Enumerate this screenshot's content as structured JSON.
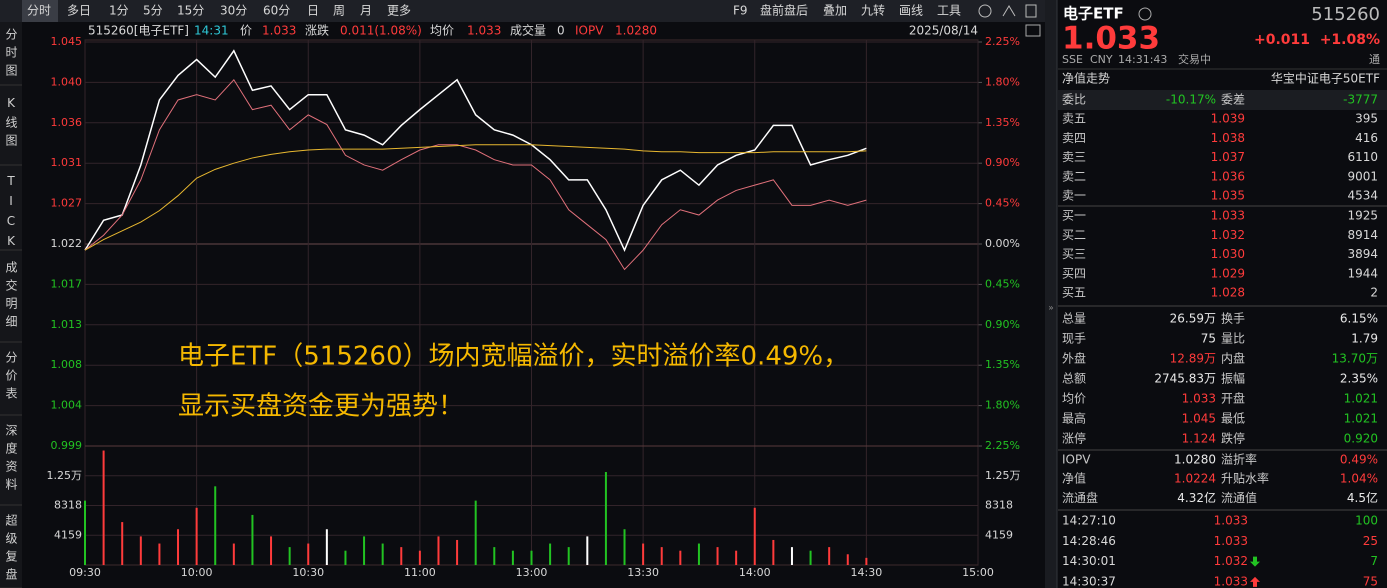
{
  "toolbar": {
    "tabs": [
      "分时",
      "多日",
      "1分",
      "5分",
      "15分",
      "30分",
      "60分",
      "日",
      "周",
      "月",
      "更多"
    ],
    "tools": [
      "F9",
      "盘前盘后",
      "叠加",
      "九转",
      "画线",
      "工具"
    ]
  },
  "sidebar": [
    "分时图",
    "K线图",
    "TICK",
    "成交明细",
    "分价表",
    "深度资料",
    "超级复盘"
  ],
  "info": [
    {
      "text": "515260[电子ETF]",
      "color": "#d8d8d8"
    },
    {
      "text": "14:31",
      "color": "#2ec7d6"
    },
    {
      "text": "价",
      "color": "#d8d8d8"
    },
    {
      "text": "1.033",
      "color": "#ff3b3b"
    },
    {
      "text": "涨跌",
      "color": "#d8d8d8"
    },
    {
      "text": "0.011(1.08%)",
      "color": "#ff3b3b"
    },
    {
      "text": "均价",
      "color": "#d8d8d8"
    },
    {
      "text": "1.033",
      "color": "#ff3b3b"
    },
    {
      "text": "成交量",
      "color": "#d8d8d8"
    },
    {
      "text": "0",
      "color": "#d8d8d8"
    },
    {
      "text": "IOPV",
      "color": "#ff3b3b"
    },
    {
      "text": "1.0280",
      "color": "#ff3b3b"
    }
  ],
  "date": "2025/08/14",
  "chart_data": {
    "type": "line",
    "base": 1.022,
    "up_color": "#ff3b3b",
    "down_color": "#22c322",
    "flat_color": "#d8d8d8",
    "xlim": [
      0,
      240
    ],
    "xticks": [
      {
        "value": 0,
        "label": "09:30"
      },
      {
        "value": 30,
        "label": "10:00"
      },
      {
        "value": 60,
        "label": "10:30"
      },
      {
        "value": 90,
        "label": "11:00"
      },
      {
        "value": 120,
        "label": "13:00"
      },
      {
        "value": 150,
        "label": "13:30"
      },
      {
        "value": 180,
        "label": "14:00"
      },
      {
        "value": 210,
        "label": "14:30"
      },
      {
        "value": 240,
        "label": "15:00"
      }
    ],
    "ylim": [
      0.999,
      1.045
    ],
    "yticks": [
      1.045,
      {
        "value": 1.0404,
        "label": "1.040"
      },
      {
        "value": 1.0358,
        "label": "1.036"
      },
      {
        "value": 1.0312,
        "label": "1.031"
      },
      {
        "value": 1.0266,
        "label": "1.027"
      },
      1.022,
      {
        "value": 1.0174,
        "label": "1.017"
      },
      {
        "value": 1.0128,
        "label": "1.013"
      },
      {
        "value": 1.0082,
        "label": "1.008"
      },
      {
        "value": 1.0036,
        "label": "1.004"
      },
      0.999
    ],
    "y2lim": [
      -2.25,
      2.25
    ],
    "y2ticks": [
      {
        "value": 2.25,
        "label": "2.25%"
      },
      {
        "value": 1.8,
        "label": "1.80%"
      },
      {
        "value": 1.35,
        "label": "1.35%"
      },
      {
        "value": 0.9,
        "label": "0.90%"
      },
      {
        "value": 0.45,
        "label": "0.45%"
      },
      {
        "value": 0,
        "label": "0.00%"
      },
      {
        "value": -0.45,
        "label": "0.45%"
      },
      {
        "value": -0.9,
        "label": "0.90%"
      },
      {
        "value": -1.35,
        "label": "1.35%"
      },
      {
        "value": -1.8,
        "label": "1.80%"
      },
      {
        "value": -2.25,
        "label": "2.25%"
      }
    ],
    "x": [
      0,
      5,
      10,
      15,
      20,
      25,
      30,
      35,
      40,
      45,
      50,
      55,
      60,
      65,
      70,
      75,
      80,
      85,
      90,
      95,
      100,
      105,
      110,
      115,
      120,
      125,
      130,
      135,
      140,
      145,
      150,
      155,
      160,
      165,
      170,
      175,
      180,
      185,
      190,
      195,
      200,
      205,
      210
    ],
    "series": [
      {
        "color": "#ffffff",
        "values": [
          1.0213,
          1.0247,
          1.0253,
          1.031,
          1.0384,
          1.0412,
          1.043,
          1.041,
          1.044,
          1.0395,
          1.04,
          1.0373,
          1.039,
          1.039,
          1.035,
          1.0344,
          1.0333,
          1.0355,
          1.0373,
          1.039,
          1.0407,
          1.0367,
          1.035,
          1.0344,
          1.0333,
          1.0316,
          1.0293,
          1.0293,
          1.0259,
          1.0213,
          1.0264,
          1.0293,
          1.0304,
          1.0287,
          1.031,
          1.0321,
          1.0327,
          1.0355,
          1.0355,
          1.031,
          1.0316,
          1.0321,
          1.0329
        ]
      },
      {
        "color": "#e0707a",
        "values": [
          1.0213,
          1.023,
          1.0253,
          1.0293,
          1.035,
          1.0384,
          1.039,
          1.0384,
          1.0407,
          1.0373,
          1.0378,
          1.035,
          1.0367,
          1.0356,
          1.0321,
          1.031,
          1.0304,
          1.0316,
          1.0327,
          1.0333,
          1.0333,
          1.0327,
          1.0316,
          1.031,
          1.031,
          1.0293,
          1.0259,
          1.0242,
          1.0225,
          1.0191,
          1.0213,
          1.0242,
          1.0259,
          1.0253,
          1.027,
          1.0281,
          1.0287,
          1.0293,
          1.0264,
          1.0264,
          1.027,
          1.0264,
          1.027
        ]
      },
      {
        "color": "#e8b830",
        "values": [
          1.0213,
          1.0225,
          1.0235,
          1.0245,
          1.0258,
          1.0275,
          1.0295,
          1.0305,
          1.0312,
          1.0318,
          1.0322,
          1.0325,
          1.0327,
          1.0328,
          1.0328,
          1.0328,
          1.0328,
          1.0329,
          1.033,
          1.0331,
          1.0332,
          1.0333,
          1.0333,
          1.0333,
          1.0333,
          1.0332,
          1.0331,
          1.033,
          1.0329,
          1.0328,
          1.0326,
          1.0325,
          1.0325,
          1.0324,
          1.0324,
          1.0324,
          1.0324,
          1.0325,
          1.0325,
          1.0325,
          1.0325,
          1.0325,
          1.0326
        ]
      }
    ],
    "volume": {
      "ylim": [
        0,
        16636
      ],
      "yticks": [
        4159,
        8318,
        {
          "value": 12477,
          "label": "1.25万"
        }
      ],
      "values": [
        9000,
        16000,
        6000,
        4000,
        3000,
        5000,
        8000,
        11000,
        3000,
        7000,
        4000,
        2500,
        3000,
        5000,
        2000,
        4000,
        3000,
        2500,
        2000,
        4000,
        3500,
        9000,
        2500,
        2000,
        2000,
        3000,
        2500,
        4000,
        13000,
        5000,
        3000,
        2500,
        2000,
        3000,
        2500,
        2000,
        8000,
        3500,
        2500,
        2000,
        2500,
        1500,
        1000
      ]
    }
  },
  "annotation": [
    "电子ETF（515260）场内宽幅溢价，实时溢价率0.49%，",
    "显示买盘资金更为强势！"
  ],
  "quote": {
    "name": "电子ETF",
    "code": "515260",
    "price": "1.033",
    "change": "+0.011",
    "pct": "+1.08%",
    "meta": [
      "SSE",
      "CNY",
      "14:31:43",
      "交易中"
    ],
    "tong": "通",
    "nav": "净值走势",
    "fund": "华宝中证电子50ETF",
    "weibi": [
      {
        "text": "委比",
        "color": "#c8c8c8"
      },
      {
        "text": "-10.17%",
        "color": "#22c322"
      },
      {
        "text": "委差",
        "color": "#c8c8c8"
      },
      {
        "text": "-3777",
        "color": "#22c322"
      }
    ],
    "book": [
      [
        "卖五",
        "1.039",
        "395"
      ],
      [
        "卖四",
        "1.038",
        "416"
      ],
      [
        "卖三",
        "1.037",
        "6110"
      ],
      [
        "卖二",
        "1.036",
        "9001"
      ],
      [
        "卖一",
        "1.035",
        "4534"
      ],
      [
        "买一",
        "1.033",
        "1925"
      ],
      [
        "买二",
        "1.032",
        "8914"
      ],
      [
        "买三",
        "1.030",
        "3894"
      ],
      [
        "买四",
        "1.029",
        "1944"
      ],
      [
        "买五",
        "1.028",
        "2"
      ]
    ],
    "stats": [
      [
        {
          "text": "总量",
          "color": "#c8c8c8"
        },
        {
          "text": "26.59万",
          "color": "#e8e8e8"
        },
        {
          "text": "换手",
          "color": "#c8c8c8"
        },
        {
          "text": "6.15%",
          "color": "#e8e8e8"
        }
      ],
      [
        {
          "text": "现手",
          "color": "#c8c8c8"
        },
        {
          "text": "75",
          "color": "#e8e8e8"
        },
        {
          "text": "量比",
          "color": "#c8c8c8"
        },
        {
          "text": "1.79",
          "color": "#e8e8e8"
        }
      ],
      [
        {
          "text": "外盘",
          "color": "#c8c8c8"
        },
        {
          "text": "12.89万",
          "color": "#ff3b3b"
        },
        {
          "text": "内盘",
          "color": "#c8c8c8"
        },
        {
          "text": "13.70万",
          "color": "#22c322"
        }
      ],
      [
        {
          "text": "总额",
          "color": "#c8c8c8"
        },
        {
          "text": "2745.83万",
          "color": "#e8e8e8"
        },
        {
          "text": "振幅",
          "color": "#c8c8c8"
        },
        {
          "text": "2.35%",
          "color": "#e8e8e8"
        }
      ],
      [
        {
          "text": "均价",
          "color": "#c8c8c8"
        },
        {
          "text": "1.033",
          "color": "#ff3b3b"
        },
        {
          "text": "开盘",
          "color": "#c8c8c8"
        },
        {
          "text": "1.021",
          "color": "#22c322"
        }
      ],
      [
        {
          "text": "最高",
          "color": "#c8c8c8"
        },
        {
          "text": "1.045",
          "color": "#ff3b3b"
        },
        {
          "text": "最低",
          "color": "#c8c8c8"
        },
        {
          "text": "1.021",
          "color": "#22c322"
        }
      ],
      [
        {
          "text": "涨停",
          "color": "#c8c8c8"
        },
        {
          "text": "1.124",
          "color": "#ff3b3b"
        },
        {
          "text": "跌停",
          "color": "#c8c8c8"
        },
        {
          "text": "0.920",
          "color": "#22c322"
        }
      ],
      [
        {
          "text": "IOPV",
          "color": "#c8c8c8"
        },
        {
          "text": "1.0280",
          "color": "#e8e8e8"
        },
        {
          "text": "溢折率",
          "color": "#c8c8c8"
        },
        {
          "text": "0.49%",
          "color": "#ff3b3b"
        }
      ],
      [
        {
          "text": "净值",
          "color": "#c8c8c8"
        },
        {
          "text": "1.0224",
          "color": "#ff3b3b"
        },
        {
          "text": "升贴水率",
          "color": "#c8c8c8"
        },
        {
          "text": "1.04%",
          "color": "#ff3b3b"
        }
      ],
      [
        {
          "text": "流通盘",
          "color": "#c8c8c8"
        },
        {
          "text": "4.32亿",
          "color": "#e8e8e8"
        },
        {
          "text": "流通值",
          "color": "#c8c8c8"
        },
        {
          "text": "4.5亿",
          "color": "#e8e8e8"
        }
      ]
    ],
    "trades": [
      {
        "time": "14:27:10",
        "price": "1.033",
        "volume": "100",
        "vcolor": "#22c322"
      },
      {
        "time": "14:28:46",
        "price": "1.033",
        "volume": "25",
        "vcolor": "#ff3b3b"
      },
      {
        "time": "14:30:01",
        "price": "1.032",
        "volume": "7",
        "vcolor": "#22c322",
        "arrow": "down"
      },
      {
        "time": "14:30:37",
        "price": "1.033",
        "volume": "75",
        "vcolor": "#ff3b3b",
        "arrow": "up"
      }
    ]
  }
}
